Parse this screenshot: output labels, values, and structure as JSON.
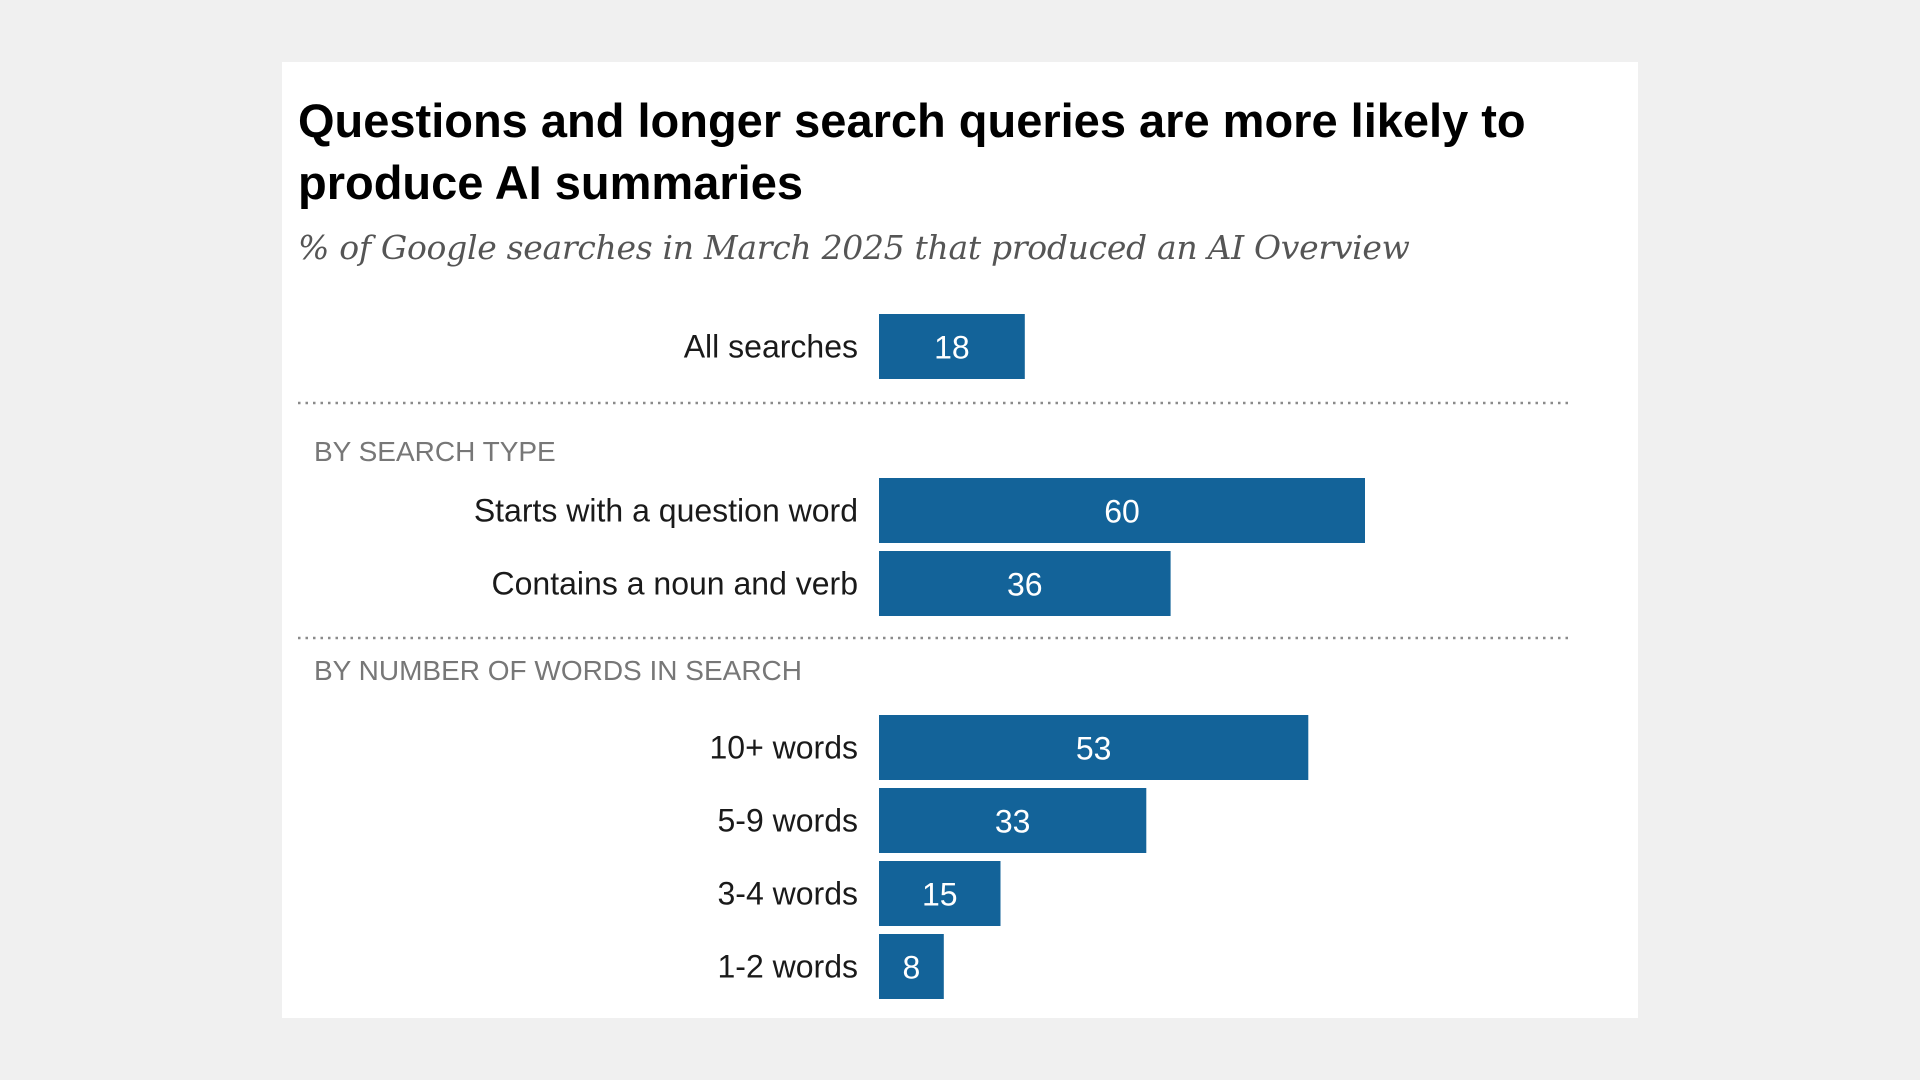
{
  "chart_data": {
    "type": "bar",
    "orientation": "horizontal",
    "title": "Questions and longer search queries are more likely to produce AI summaries",
    "subtitle": "% of Google searches in March 2025 that produced an AI Overview",
    "bar_color": "#136399",
    "value_range": [
      0,
      100
    ],
    "grid": false,
    "groups": [
      {
        "label": "",
        "categories": [
          "All searches"
        ],
        "values": [
          18
        ]
      },
      {
        "label": "BY SEARCH TYPE",
        "categories": [
          "Starts with a question word",
          "Contains a noun and verb"
        ],
        "values": [
          60,
          36
        ]
      },
      {
        "label": "BY NUMBER OF WORDS IN SEARCH",
        "categories": [
          "10+ words",
          "5-9 words",
          "3-4 words",
          "1-2 words"
        ],
        "values": [
          53,
          33,
          15,
          8
        ]
      }
    ]
  }
}
